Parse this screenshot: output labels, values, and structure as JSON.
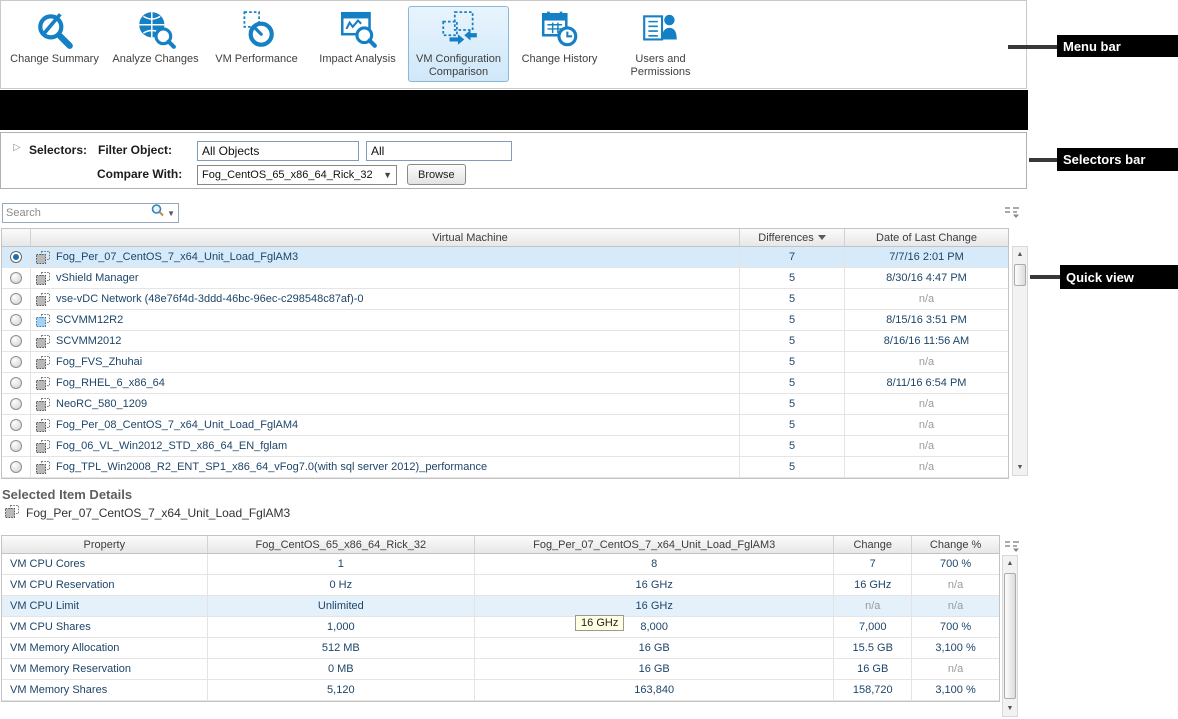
{
  "menu_bar": {
    "items": [
      {
        "label": "Change Summary",
        "icon": "change-summary",
        "selected": false
      },
      {
        "label": "Analyze Changes",
        "icon": "analyze-changes",
        "selected": false
      },
      {
        "label": "VM Performance",
        "icon": "vm-performance",
        "selected": false
      },
      {
        "label": "Impact Analysis",
        "icon": "impact-analysis",
        "selected": false
      },
      {
        "label": "VM Configuration Comparison",
        "icon": "vm-configuration-comparison",
        "selected": true
      },
      {
        "label": "Change History",
        "icon": "change-history",
        "selected": false
      },
      {
        "label": "Users and Permissions",
        "icon": "users-permissions",
        "selected": false
      }
    ]
  },
  "selectors_bar": {
    "title": "Selectors:",
    "filter_object_label": "Filter Object:",
    "filter_object_value": "All Objects",
    "filter_type_value": "All",
    "compare_with_label": "Compare With:",
    "compare_with_value": "Fog_CentOS_65_x86_64_Rick_32",
    "browse_label": "Browse"
  },
  "quick_view": {
    "search_placeholder": "Search",
    "columns": {
      "virtual_machine": "Virtual Machine",
      "differences": "Differences",
      "date_of_last_change": "Date of Last Change"
    },
    "sort": {
      "column": "Differences",
      "direction": "desc"
    },
    "rows": [
      {
        "name": "Fog_Per_07_CentOS_7_x64_Unit_Load_FglAM3",
        "differences": "7",
        "date": "7/7/16 2:01 PM",
        "selected": true,
        "icon": "gray"
      },
      {
        "name": "vShield Manager",
        "differences": "5",
        "date": "8/30/16 4:47 PM",
        "selected": false,
        "icon": "gray"
      },
      {
        "name": "vse-vDC Network (48e76f4d-3ddd-46bc-96ec-c298548c87af)-0",
        "differences": "5",
        "date": "n/a",
        "selected": false,
        "icon": "gray"
      },
      {
        "name": "SCVMM12R2",
        "differences": "5",
        "date": "8/15/16 3:51 PM",
        "selected": false,
        "icon": "blue"
      },
      {
        "name": "SCVMM2012",
        "differences": "5",
        "date": "8/16/16 11:56 AM",
        "selected": false,
        "icon": "gray"
      },
      {
        "name": "Fog_FVS_Zhuhai",
        "differences": "5",
        "date": "n/a",
        "selected": false,
        "icon": "gray"
      },
      {
        "name": "Fog_RHEL_6_x86_64",
        "differences": "5",
        "date": "8/11/16 6:54 PM",
        "selected": false,
        "icon": "gray"
      },
      {
        "name": "NeoRC_580_1209",
        "differences": "5",
        "date": "n/a",
        "selected": false,
        "icon": "gray"
      },
      {
        "name": "Fog_Per_08_CentOS_7_x64_Unit_Load_FglAM4",
        "differences": "5",
        "date": "n/a",
        "selected": false,
        "icon": "gray"
      },
      {
        "name": "Fog_06_VL_Win2012_STD_x86_64_EN_fglam",
        "differences": "5",
        "date": "n/a",
        "selected": false,
        "icon": "gray"
      },
      {
        "name": "Fog_TPL_Win2008_R2_ENT_SP1_x86_64_vFog7.0(with sql server 2012)_performance",
        "differences": "5",
        "date": "n/a",
        "selected": false,
        "icon": "gray"
      }
    ]
  },
  "details": {
    "title": "Selected Item Details",
    "item_name": "Fog_Per_07_CentOS_7_x64_Unit_Load_FglAM3",
    "columns": {
      "property": "Property",
      "baseline": "Fog_CentOS_65_x86_64_Rick_32",
      "compared": "Fog_Per_07_CentOS_7_x64_Unit_Load_FglAM3",
      "change": "Change",
      "change_pct": "Change %"
    },
    "rows": [
      {
        "property": "VM CPU Cores",
        "baseline": "1",
        "compared": "8",
        "change": "7",
        "change_pct": "700 %"
      },
      {
        "property": "VM CPU Reservation",
        "baseline": "0 Hz",
        "compared": "16 GHz",
        "change": "16 GHz",
        "change_pct": "n/a"
      },
      {
        "property": "VM CPU Limit",
        "baseline": "Unlimited",
        "compared": "16 GHz",
        "change": "n/a",
        "change_pct": "n/a",
        "highlighted": true
      },
      {
        "property": "VM CPU Shares",
        "baseline": "1,000",
        "compared": "8,000",
        "change": "7,000",
        "change_pct": "700 %",
        "tooltip": "16 GHz"
      },
      {
        "property": "VM Memory Allocation",
        "baseline": "512 MB",
        "compared": "16 GB",
        "change": "15.5 GB",
        "change_pct": "3,100 %"
      },
      {
        "property": "VM Memory Reservation",
        "baseline": "0 MB",
        "compared": "16 GB",
        "change": "16 GB",
        "change_pct": "n/a"
      },
      {
        "property": "VM Memory Shares",
        "baseline": "5,120",
        "compared": "163,840",
        "change": "158,720",
        "change_pct": "3,100 %"
      }
    ]
  },
  "callouts": [
    {
      "label": "Menu bar"
    },
    {
      "label": "Selectors bar"
    },
    {
      "label": "Quick view"
    }
  ],
  "colors": {
    "accent_blue": "#1580c4",
    "selected_row_bg": "#d7eaf9",
    "highlight_row_bg": "#e4f1fb",
    "callout_bg": "#000000",
    "callout_text": "#ffffff",
    "tooltip_bg": "#ffffe1"
  }
}
